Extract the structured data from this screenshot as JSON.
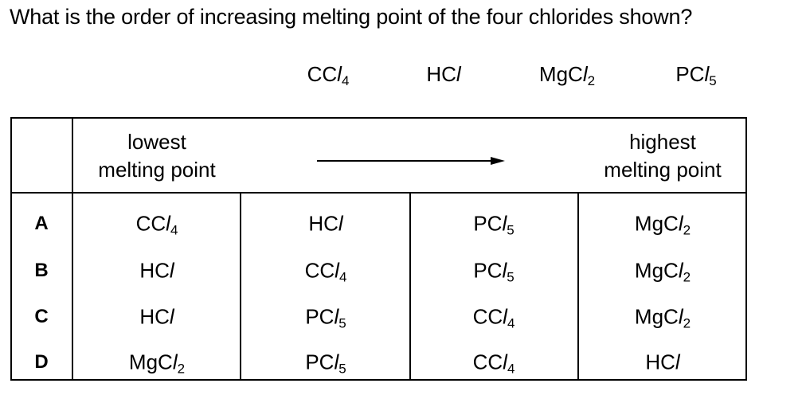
{
  "question": "What is the order of increasing melting point of the four chlorides shown?",
  "chlorides": [
    {
      "base": "CC",
      "l": "l",
      "sub": "4"
    },
    {
      "base": "HC",
      "l": "l",
      "sub": ""
    },
    {
      "base": "MgC",
      "l": "l",
      "sub": "2"
    },
    {
      "base": "PC",
      "l": "l",
      "sub": "5"
    }
  ],
  "header": {
    "lowest_line1": "lowest",
    "lowest_line2": "melting point",
    "highest_line1": "highest",
    "highest_line2": "melting point"
  },
  "options": [
    {
      "letter": "A",
      "cells": [
        {
          "base": "CC",
          "l": "l",
          "sub": "4"
        },
        {
          "base": "HC",
          "l": "l",
          "sub": ""
        },
        {
          "base": "PC",
          "l": "l",
          "sub": "5"
        },
        {
          "base": "MgC",
          "l": "l",
          "sub": "2"
        }
      ]
    },
    {
      "letter": "B",
      "cells": [
        {
          "base": "HC",
          "l": "l",
          "sub": ""
        },
        {
          "base": "CC",
          "l": "l",
          "sub": "4"
        },
        {
          "base": "PC",
          "l": "l",
          "sub": "5"
        },
        {
          "base": "MgC",
          "l": "l",
          "sub": "2"
        }
      ]
    },
    {
      "letter": "C",
      "cells": [
        {
          "base": "HC",
          "l": "l",
          "sub": ""
        },
        {
          "base": "PC",
          "l": "l",
          "sub": "5"
        },
        {
          "base": "CC",
          "l": "l",
          "sub": "4"
        },
        {
          "base": "MgC",
          "l": "l",
          "sub": "2"
        }
      ]
    },
    {
      "letter": "D",
      "cells": [
        {
          "base": "MgC",
          "l": "l",
          "sub": "2"
        },
        {
          "base": "PC",
          "l": "l",
          "sub": "5"
        },
        {
          "base": "CC",
          "l": "l",
          "sub": "4"
        },
        {
          "base": "HC",
          "l": "l",
          "sub": ""
        }
      ]
    }
  ]
}
